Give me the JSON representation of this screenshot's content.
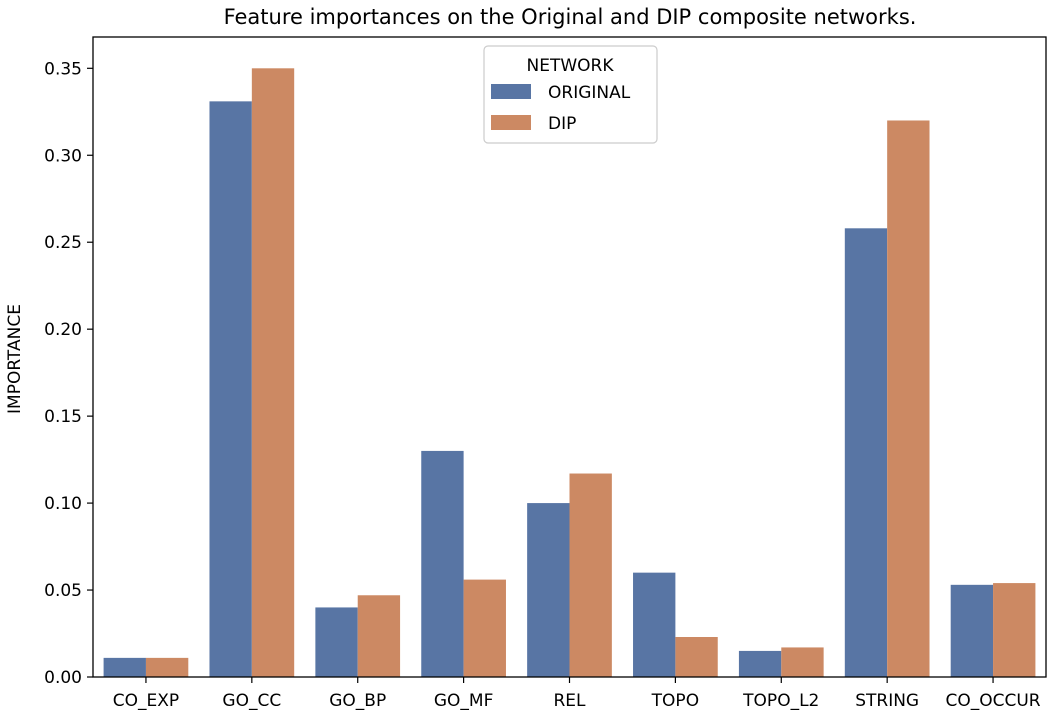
{
  "chart_data": {
    "type": "bar",
    "title": "Feature importances on the Original and DIP composite networks.",
    "xlabel": "",
    "ylabel": "IMPORTANCE",
    "ylim": [
      0,
      0.368
    ],
    "yticks": [
      0.0,
      0.05,
      0.1,
      0.15,
      0.2,
      0.25,
      0.3,
      0.35
    ],
    "ytick_labels": [
      "0.00",
      "0.05",
      "0.10",
      "0.15",
      "0.20",
      "0.25",
      "0.30",
      "0.35"
    ],
    "categories": [
      "CO_EXP",
      "GO_CC",
      "GO_BP",
      "GO_MF",
      "REL",
      "TOPO",
      "TOPO_L2",
      "STRING",
      "CO_OCCUR"
    ],
    "series": [
      {
        "name": "ORIGINAL",
        "color": "#5875a4",
        "values": [
          0.011,
          0.331,
          0.04,
          0.13,
          0.1,
          0.06,
          0.015,
          0.258,
          0.053
        ]
      },
      {
        "name": "DIP",
        "color": "#cc8963",
        "values": [
          0.011,
          0.35,
          0.047,
          0.056,
          0.117,
          0.023,
          0.017,
          0.32,
          0.054
        ]
      }
    ],
    "legend": {
      "title": "NETWORK",
      "placement": "top-center"
    },
    "grid": false
  }
}
